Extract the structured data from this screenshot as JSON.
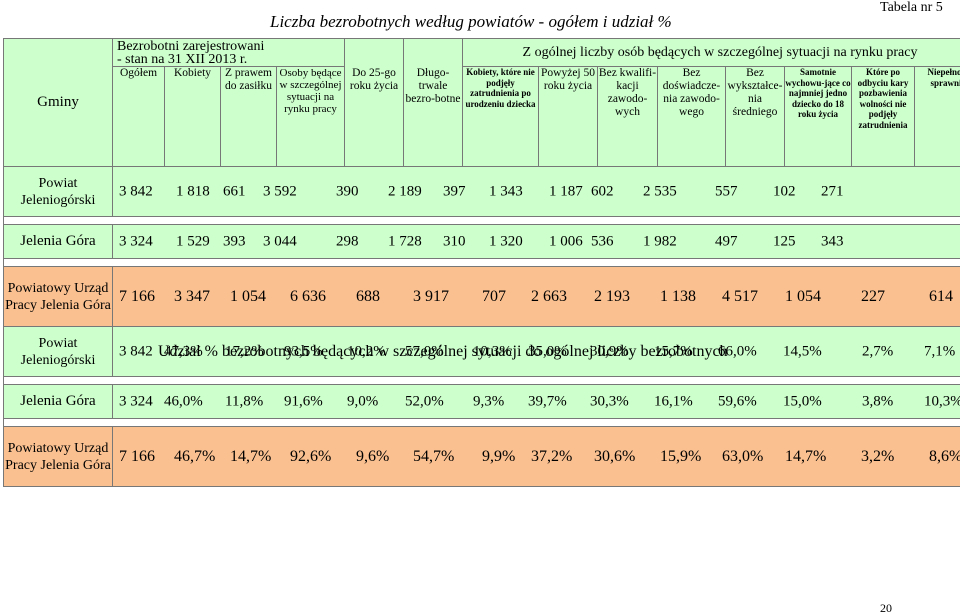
{
  "title": "Liczba bezrobotnych według powiatów - ogółem i udział %",
  "table_number": "Tabela nr 5",
  "page_number": "20",
  "header": {
    "gminy": "Gminy",
    "bezrobotni_line1": "Bezrobotni  zarejestrowani",
    "bezrobotni_line2": "-  stan  na  31 XII 2013 r.",
    "ogolem": "Ogółem",
    "kobiety": "Kobiety",
    "z_prawem": "Z prawem do zasiłku",
    "osoby": "Osoby będące w szczególnej sytuacji na rynku pracy",
    "z_ogolnej": "Z ogólnej liczby osób będących w szczególnej sytuacji na rynku pracy",
    "do25": "Do 25-go roku życia",
    "dlugo": "Długo-trwale bezro-botne",
    "kobiety_ktore": "Kobiety, które nie podjęły zatrudnienia po urodzeniu dziecka",
    "powyzej50": "Powyżej 50 roku życia",
    "bez_kwal": "Bez kwalifi-kacji zawodo-wych",
    "bez_dosw": "Bez doświadcze-nia zawodo-wego",
    "bez_wyksz": "Bez wykształce-nia średniego",
    "samotnie": "Samotnie wychowu-jące co najmniej jedno dziecko do 18 roku życia",
    "ktore_po": "Które po odbyciu kary pozbawienia wolności nie podjęły zatrudnienia",
    "niepelno": "Niepełno-sprawni"
  },
  "counts": {
    "rows": [
      {
        "label": "Powiat Jeleniogórski",
        "values": [
          "3 842",
          "1 818",
          "661",
          "3 592",
          "390",
          "2 189",
          "397",
          "1 343",
          "1 187",
          "602",
          "2 535",
          "557",
          "102",
          "271"
        ]
      },
      {
        "label": "Jelenia Góra",
        "values": [
          "3 324",
          "1 529",
          "393",
          "3 044",
          "298",
          "1 728",
          "310",
          "1 320",
          "1 006",
          "536",
          "1 982",
          "497",
          "125",
          "343"
        ]
      },
      {
        "label": "Powiatowy Urząd Pracy Jelenia Góra",
        "values": [
          "7 166",
          "3 347",
          "1 054",
          "6 636",
          "688",
          "3 917",
          "707",
          "2 663",
          "2 193",
          "1 138",
          "4 517",
          "1 054",
          "227",
          "614"
        ]
      }
    ]
  },
  "share_title": "Udział % bezrobotnych będących w szczególnej sytuacji do ogólnej liczby bezrobotnych",
  "shares": {
    "rows": [
      {
        "label": "Powiat Jeleniogórski",
        "values": [
          "3 842",
          "47,3%",
          "17,2%",
          "93,5%",
          "10,2%",
          "57,0%",
          "10,3%",
          "35,0%",
          "30,9%",
          "15,7%",
          "66,0%",
          "14,5%",
          "2,7%",
          "7,1%"
        ]
      },
      {
        "label": "Jelenia Góra",
        "values": [
          "3 324",
          "46,0%",
          "11,8%",
          "91,6%",
          "9,0%",
          "52,0%",
          "9,3%",
          "39,7%",
          "30,3%",
          "16,1%",
          "59,6%",
          "15,0%",
          "3,8%",
          "10,3%"
        ]
      },
      {
        "label": "Powiatowy Urząd Pracy Jelenia Góra",
        "values": [
          "7 166",
          "46,7%",
          "14,7%",
          "92,6%",
          "9,6%",
          "54,7%",
          "9,9%",
          "37,2%",
          "30,6%",
          "15,9%",
          "63,0%",
          "14,7%",
          "3,2%",
          "8,6%"
        ]
      }
    ]
  },
  "colors": {
    "green": "#ccffcc",
    "orange": "#fac090",
    "border": "#777777"
  }
}
